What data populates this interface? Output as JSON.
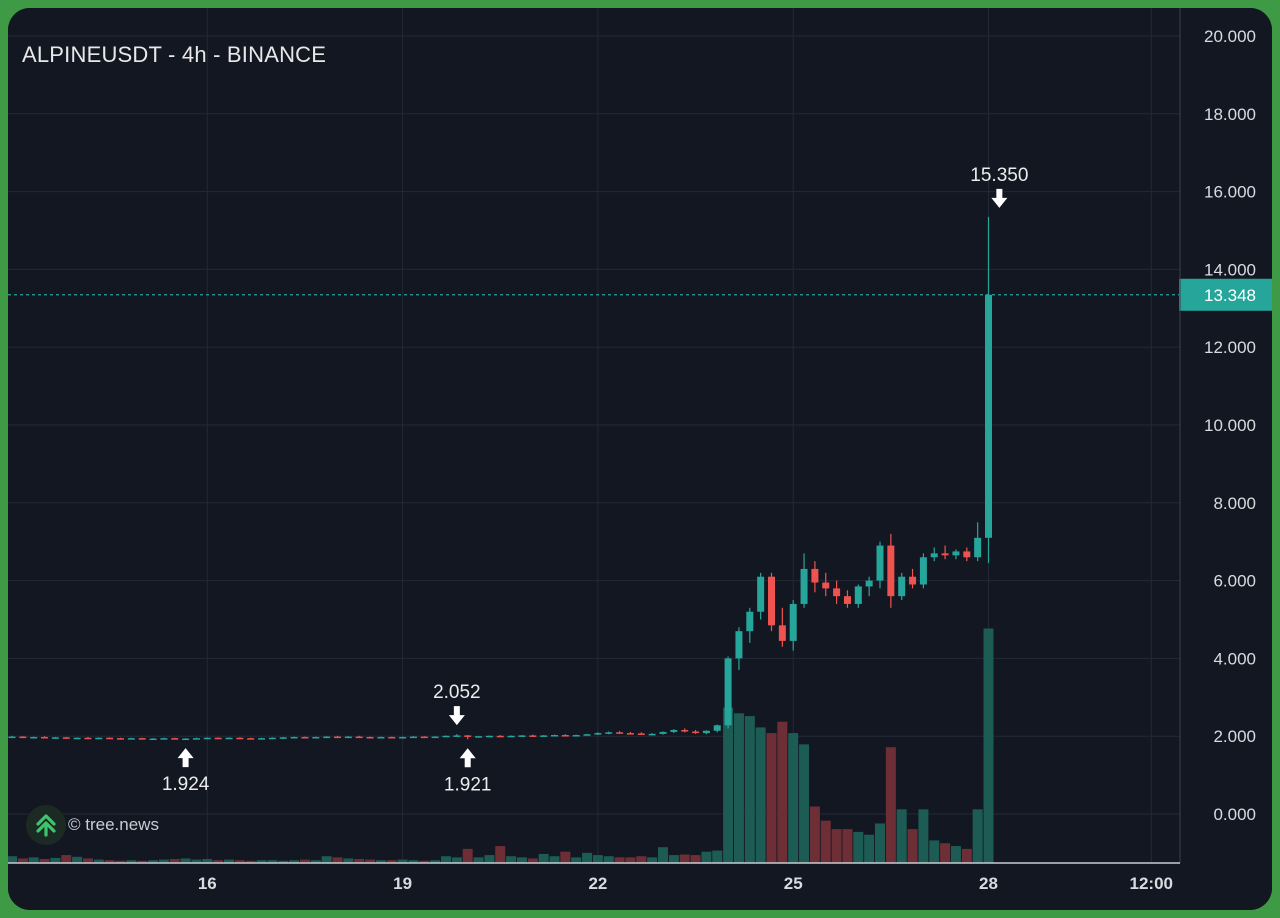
{
  "title": "ALPINEUSDT - 4h - BINANCE",
  "watermark": "© tree.news",
  "colors": {
    "background": "#131722",
    "grid": "#232837",
    "up": "#26a69a",
    "down": "#ef5350",
    "volume_up": "#1d5b55",
    "volume_down": "#6e2e35",
    "price_line": "#26a69a",
    "axis_text": "#d9dbe0"
  },
  "chart_data": {
    "type": "candlestick",
    "symbol": "ALPINEUSDT",
    "interval": "4h",
    "exchange": "BINANCE",
    "ylim": [
      -1.3,
      20.6
    ],
    "y_ticks": [
      "20.000",
      "18.000",
      "16.000",
      "14.000",
      "12.000",
      "10.000",
      "8.000",
      "6.000",
      "4.000",
      "2.000",
      "0.000"
    ],
    "x_ticks": [
      {
        "label": "16",
        "index": 18
      },
      {
        "label": "19",
        "index": 36
      },
      {
        "label": "22",
        "index": 54
      },
      {
        "label": "25",
        "index": 72
      },
      {
        "label": "28",
        "index": 90
      },
      {
        "label": "12:00",
        "index": 105
      }
    ],
    "candles": [
      [
        1.99,
        2.01,
        1.97,
        1.99,
        0.12
      ],
      [
        1.99,
        2.0,
        1.96,
        1.97,
        0.08
      ],
      [
        1.97,
        1.99,
        1.95,
        1.98,
        0.1
      ],
      [
        1.98,
        2.0,
        1.95,
        1.96,
        0.07
      ],
      [
        1.96,
        1.98,
        1.94,
        1.97,
        0.09
      ],
      [
        1.97,
        1.98,
        1.94,
        1.95,
        0.14
      ],
      [
        1.95,
        1.97,
        1.93,
        1.96,
        0.11
      ],
      [
        1.96,
        1.98,
        1.94,
        1.95,
        0.08
      ],
      [
        1.95,
        1.97,
        1.93,
        1.96,
        0.06
      ],
      [
        1.96,
        1.97,
        1.94,
        1.95,
        0.05
      ],
      [
        1.95,
        1.96,
        1.93,
        1.94,
        0.04
      ],
      [
        1.94,
        1.96,
        1.93,
        1.95,
        0.05
      ],
      [
        1.95,
        1.96,
        1.93,
        1.94,
        0.04
      ],
      [
        1.94,
        1.95,
        1.93,
        1.94,
        0.05
      ],
      [
        1.94,
        1.96,
        1.93,
        1.95,
        0.06
      ],
      [
        1.95,
        1.96,
        1.92,
        1.93,
        0.07
      ],
      [
        1.93,
        1.95,
        1.924,
        1.94,
        0.08
      ],
      [
        1.94,
        1.96,
        1.93,
        1.95,
        0.06
      ],
      [
        1.95,
        1.97,
        1.94,
        1.96,
        0.07
      ],
      [
        1.96,
        1.97,
        1.94,
        1.95,
        0.05
      ],
      [
        1.95,
        1.97,
        1.94,
        1.96,
        0.06
      ],
      [
        1.96,
        1.97,
        1.94,
        1.95,
        0.05
      ],
      [
        1.95,
        1.96,
        1.93,
        1.94,
        0.04
      ],
      [
        1.94,
        1.96,
        1.93,
        1.95,
        0.05
      ],
      [
        1.95,
        1.97,
        1.94,
        1.96,
        0.05
      ],
      [
        1.96,
        1.98,
        1.95,
        1.97,
        0.04
      ],
      [
        1.97,
        1.99,
        1.96,
        1.98,
        0.05
      ],
      [
        1.98,
        1.99,
        1.96,
        1.97,
        0.06
      ],
      [
        1.97,
        1.99,
        1.96,
        1.98,
        0.05
      ],
      [
        1.98,
        2.0,
        1.97,
        1.99,
        0.12
      ],
      [
        1.99,
        2.01,
        1.97,
        1.98,
        0.1
      ],
      [
        1.98,
        2.0,
        1.97,
        1.99,
        0.08
      ],
      [
        1.99,
        2.01,
        1.97,
        1.98,
        0.07
      ],
      [
        1.98,
        1.99,
        1.96,
        1.97,
        0.06
      ],
      [
        1.97,
        1.99,
        1.96,
        1.98,
        0.05
      ],
      [
        1.98,
        1.99,
        1.96,
        1.97,
        0.05
      ],
      [
        1.97,
        1.99,
        1.96,
        1.98,
        0.06
      ],
      [
        1.98,
        2.0,
        1.97,
        1.99,
        0.05
      ],
      [
        1.99,
        2.0,
        1.97,
        1.98,
        0.04
      ],
      [
        1.98,
        2.0,
        1.97,
        1.99,
        0.05
      ],
      [
        1.99,
        2.02,
        1.98,
        2.01,
        0.12
      ],
      [
        2.01,
        2.052,
        2.0,
        2.02,
        0.1
      ],
      [
        2.02,
        2.03,
        1.921,
        1.99,
        0.25
      ],
      [
        1.99,
        2.01,
        1.97,
        2.0,
        0.1
      ],
      [
        2.0,
        2.02,
        1.98,
        2.01,
        0.14
      ],
      [
        2.01,
        2.03,
        1.99,
        2.0,
        0.3
      ],
      [
        2.0,
        2.02,
        1.98,
        2.01,
        0.12
      ],
      [
        2.01,
        2.03,
        1.99,
        2.02,
        0.1
      ],
      [
        2.02,
        2.04,
        2.0,
        2.01,
        0.08
      ],
      [
        2.01,
        2.03,
        1.99,
        2.02,
        0.16
      ],
      [
        2.02,
        2.04,
        2.0,
        2.03,
        0.12
      ],
      [
        2.03,
        2.05,
        2.01,
        2.02,
        0.2
      ],
      [
        2.02,
        2.04,
        2.0,
        2.03,
        0.1
      ],
      [
        2.03,
        2.06,
        2.02,
        2.05,
        0.18
      ],
      [
        2.05,
        2.1,
        2.03,
        2.08,
        0.14
      ],
      [
        2.08,
        2.12,
        2.05,
        2.1,
        0.12
      ],
      [
        2.1,
        2.13,
        2.06,
        2.08,
        0.1
      ],
      [
        2.08,
        2.11,
        2.05,
        2.07,
        0.1
      ],
      [
        2.07,
        2.1,
        2.04,
        2.05,
        0.12
      ],
      [
        2.05,
        2.08,
        2.02,
        2.06,
        0.1
      ],
      [
        2.06,
        2.12,
        2.04,
        2.11,
        0.28
      ],
      [
        2.11,
        2.18,
        2.08,
        2.16,
        0.14
      ],
      [
        2.16,
        2.2,
        2.1,
        2.12,
        0.15
      ],
      [
        2.12,
        2.16,
        2.06,
        2.08,
        0.14
      ],
      [
        2.08,
        2.15,
        2.05,
        2.14,
        0.2
      ],
      [
        2.14,
        2.3,
        2.1,
        2.28,
        0.22
      ],
      [
        2.28,
        4.05,
        2.2,
        4.0,
        2.75
      ],
      [
        4.0,
        4.8,
        3.7,
        4.7,
        2.65
      ],
      [
        4.7,
        5.3,
        4.4,
        5.2,
        2.6
      ],
      [
        5.2,
        6.2,
        5.0,
        6.1,
        2.4
      ],
      [
        6.1,
        6.2,
        4.7,
        4.85,
        2.3
      ],
      [
        4.85,
        5.3,
        4.3,
        4.45,
        2.5
      ],
      [
        4.45,
        5.5,
        4.2,
        5.4,
        2.3
      ],
      [
        5.4,
        6.7,
        5.3,
        6.3,
        2.1
      ],
      [
        6.3,
        6.5,
        5.7,
        5.95,
        1.0
      ],
      [
        5.95,
        6.2,
        5.6,
        5.8,
        0.75
      ],
      [
        5.8,
        6.0,
        5.4,
        5.6,
        0.6
      ],
      [
        5.6,
        5.75,
        5.3,
        5.4,
        0.6
      ],
      [
        5.4,
        5.9,
        5.3,
        5.85,
        0.55
      ],
      [
        5.85,
        6.1,
        5.6,
        6.0,
        0.5
      ],
      [
        6.0,
        7.0,
        5.8,
        6.9,
        0.7
      ],
      [
        6.9,
        7.2,
        5.3,
        5.6,
        2.05
      ],
      [
        5.6,
        6.2,
        5.5,
        6.1,
        0.95
      ],
      [
        6.1,
        6.3,
        5.8,
        5.9,
        0.6
      ],
      [
        5.9,
        6.7,
        5.8,
        6.6,
        0.95
      ],
      [
        6.6,
        6.85,
        6.5,
        6.7,
        0.4
      ],
      [
        6.7,
        6.9,
        6.55,
        6.65,
        0.35
      ],
      [
        6.65,
        6.8,
        6.55,
        6.75,
        0.3
      ],
      [
        6.75,
        6.85,
        6.5,
        6.6,
        0.25
      ],
      [
        6.6,
        7.5,
        6.5,
        7.1,
        0.95
      ],
      [
        7.1,
        15.35,
        6.45,
        13.348,
        4.15
      ]
    ],
    "annotations": [
      {
        "type": "low",
        "label": "1.924",
        "index": 16,
        "value": 1.924
      },
      {
        "type": "high",
        "label": "2.052",
        "index": 41,
        "value": 2.052
      },
      {
        "type": "low",
        "label": "1.921",
        "index": 42,
        "value": 1.921
      },
      {
        "type": "high",
        "label": "15.350",
        "index": 91,
        "value": 15.35
      }
    ],
    "last_price": {
      "value": 13.348,
      "label": "13.348"
    }
  }
}
